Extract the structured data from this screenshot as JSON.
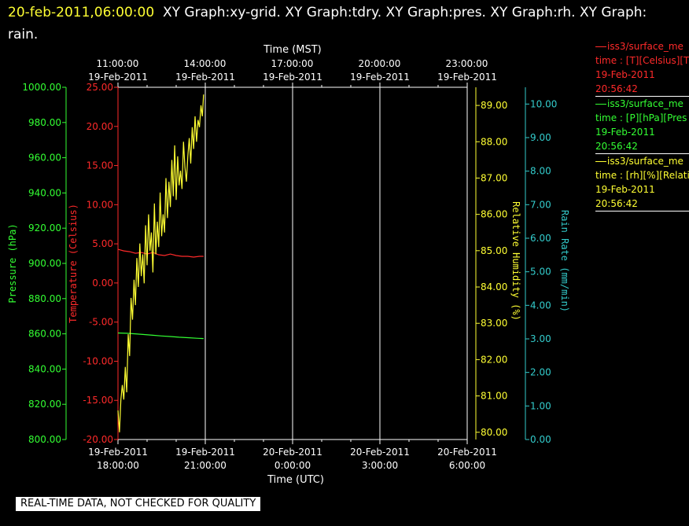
{
  "header": {
    "timestamp": "20-feb-2011,06:00:00",
    "title": "XY Graph:xy-grid.  XY Graph:tdry.  XY Graph:pres.  XY Graph:rh.  XY Graph: rain."
  },
  "footer": {
    "quality_note": "REAL-TIME DATA, NOT CHECKED FOR QUALITY"
  },
  "legend": [
    {
      "name": "iss3/surface_me",
      "line2": "time : [T][Celsius][T",
      "date": "19-Feb-2011",
      "time": "20:56:42",
      "color": "#ff2a2a"
    },
    {
      "name": "iss3/surface_me",
      "line2": "time : [P][hPa][Pres",
      "date": "19-Feb-2011",
      "time": "20:56:42",
      "color": "#33ff33"
    },
    {
      "name": "iss3/surface_me",
      "line2": "time : [rh][%][Relati",
      "date": "19-Feb-2011",
      "time": "20:56:42",
      "color": "#ffff33"
    }
  ],
  "chart_data": {
    "type": "line",
    "top_axis": {
      "title": "Time (MST)",
      "ticks": [
        {
          "time": "11:00:00",
          "date": "19-Feb-2011"
        },
        {
          "time": "14:00:00",
          "date": "19-Feb-2011"
        },
        {
          "time": "17:00:00",
          "date": "19-Feb-2011"
        },
        {
          "time": "20:00:00",
          "date": "19-Feb-2011"
        },
        {
          "time": "23:00:00",
          "date": "19-Feb-2011"
        }
      ]
    },
    "bottom_axis": {
      "title": "Time (UTC)",
      "ticks": [
        {
          "date": "19-Feb-2011",
          "time": "18:00:00"
        },
        {
          "date": "19-Feb-2011",
          "time": "21:00:00"
        },
        {
          "date": "20-Feb-2011",
          "time": "0:00:00"
        },
        {
          "date": "20-Feb-2011",
          "time": "3:00:00"
        },
        {
          "date": "20-Feb-2011",
          "time": "6:00:00"
        }
      ],
      "xlim_utc_hours": [
        18,
        30
      ],
      "grid": true
    },
    "axes": {
      "pressure": {
        "label": "Pressure (hPa)",
        "color": "#33ff33",
        "min": 800,
        "max": 1000,
        "step": 20,
        "decimals": 2
      },
      "temperature": {
        "label": "Temperature (Celsius)",
        "color": "#ff2a2a",
        "min": -20,
        "max": 25,
        "step": 5,
        "decimals": 2
      },
      "rh": {
        "label": "Relative Humidity (%)",
        "color": "#ffff33",
        "min": 79.8,
        "max": 89.5,
        "ticks": [
          80,
          81,
          82,
          83,
          84,
          85,
          86,
          87,
          88,
          89
        ],
        "decimals": 2
      },
      "rain": {
        "label": "Rain Rate (mm/min)",
        "color": "#33cccc",
        "min": 0,
        "max": 10.5,
        "step": 1,
        "decimals": 2
      }
    },
    "series": [
      {
        "name": "T",
        "axis": "temperature",
        "color": "#ff2a2a",
        "x": [
          18.0,
          18.2,
          18.4,
          18.6,
          18.8,
          19.0,
          19.2,
          19.4,
          19.6,
          19.8,
          20.0,
          20.2,
          20.4,
          20.6,
          20.8,
          20.94
        ],
        "y": [
          4.3,
          4.1,
          4.0,
          3.8,
          3.9,
          3.7,
          3.9,
          3.6,
          3.5,
          3.7,
          3.5,
          3.4,
          3.4,
          3.3,
          3.4,
          3.4
        ]
      },
      {
        "name": "P",
        "axis": "pressure",
        "color": "#33ff33",
        "x": [
          18.0,
          18.3,
          18.6,
          18.9,
          19.2,
          19.5,
          19.8,
          20.1,
          20.4,
          20.7,
          20.94
        ],
        "y": [
          860.5,
          860.3,
          860.0,
          859.6,
          859.2,
          858.8,
          858.5,
          858.1,
          857.8,
          857.5,
          857.3
        ]
      },
      {
        "name": "rh",
        "axis": "rh",
        "color": "#ffff33",
        "x": [
          18.0,
          18.05,
          18.1,
          18.15,
          18.2,
          18.25,
          18.3,
          18.35,
          18.4,
          18.45,
          18.5,
          18.55,
          18.6,
          18.65,
          18.7,
          18.75,
          18.8,
          18.85,
          18.9,
          18.95,
          19.0,
          19.05,
          19.1,
          19.15,
          19.2,
          19.25,
          19.3,
          19.35,
          19.4,
          19.45,
          19.5,
          19.55,
          19.6,
          19.65,
          19.7,
          19.75,
          19.8,
          19.85,
          19.9,
          19.95,
          20.0,
          20.05,
          20.1,
          20.15,
          20.2,
          20.25,
          20.3,
          20.35,
          20.4,
          20.45,
          20.5,
          20.55,
          20.6,
          20.65,
          20.7,
          20.75,
          20.8,
          20.85,
          20.9,
          20.94
        ],
        "y": [
          80.6,
          80.0,
          80.9,
          81.3,
          80.9,
          81.8,
          81.1,
          82.7,
          82.1,
          83.7,
          83.1,
          84.2,
          83.5,
          84.8,
          84.0,
          85.2,
          84.3,
          84.9,
          84.1,
          85.7,
          84.6,
          86.0,
          85.0,
          85.5,
          84.4,
          86.3,
          84.9,
          85.8,
          85.1,
          86.6,
          85.4,
          86.0,
          85.5,
          87.0,
          85.9,
          86.9,
          86.2,
          87.5,
          86.5,
          87.9,
          86.4,
          87.6,
          86.8,
          87.2,
          86.7,
          88.0,
          87.3,
          86.9,
          87.6,
          88.1,
          87.4,
          88.4,
          87.8,
          88.7,
          88.0,
          88.6,
          88.4,
          89.0,
          88.7,
          89.3
        ]
      }
    ]
  }
}
